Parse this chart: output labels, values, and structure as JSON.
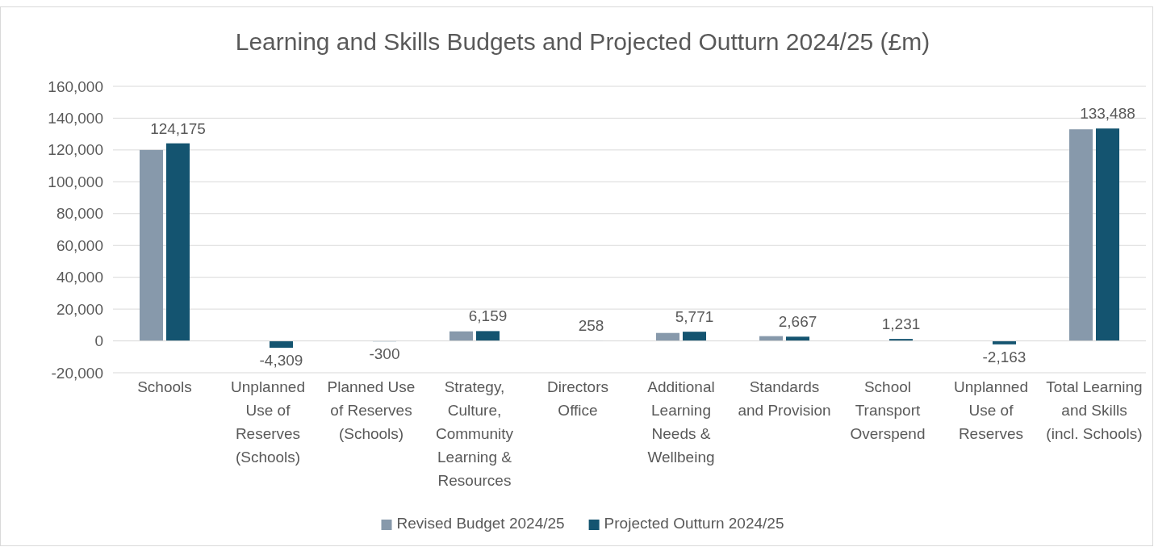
{
  "chart_data": {
    "type": "bar",
    "title": "Learning and Skills Budgets and Projected Outturn 2024/25 (£m)",
    "categories": [
      "Schools",
      "Unplanned Use of Reserves (Schools)",
      "Planned Use of Reserves (Schools)",
      "Strategy, Culture, Community Learning & Resources",
      "Directors Office",
      "Additional Learning Needs & Wellbeing",
      "Standards and Provision",
      "School Transport Overspend",
      "Unplanned Use of Reserves",
      "Total Learning and Skills (incl. Schools)"
    ],
    "series": [
      {
        "name": "Revised Budget 2024/25",
        "color": "#8799ab",
        "values": [
          120000,
          null,
          null,
          6000,
          null,
          5000,
          3000,
          null,
          null,
          133000
        ]
      },
      {
        "name": "Projected Outturn 2024/25",
        "color": "#145470",
        "values": [
          124175,
          -4309,
          -300,
          6159,
          258,
          5771,
          2667,
          1231,
          -2163,
          133488
        ],
        "value_labels": [
          "124,175",
          "-4,309",
          "-300",
          "6,159",
          "258",
          "5,771",
          "2,667",
          "1,231",
          "-2,163",
          "133,488"
        ]
      }
    ],
    "ylim": [
      -20000,
      160000
    ],
    "yticks": [
      {
        "value": -20000,
        "label": "-20,000"
      },
      {
        "value": 0,
        "label": "0"
      },
      {
        "value": 20000,
        "label": "20,000"
      },
      {
        "value": 40000,
        "label": "40,000"
      },
      {
        "value": 60000,
        "label": "60,000"
      },
      {
        "value": 80000,
        "label": "80,000"
      },
      {
        "value": 100000,
        "label": "100,000"
      },
      {
        "value": 120000,
        "label": "120,000"
      },
      {
        "value": 140000,
        "label": "140,000"
      },
      {
        "value": 160000,
        "label": "160,000"
      }
    ],
    "grid": "y",
    "legend": "bottom"
  }
}
